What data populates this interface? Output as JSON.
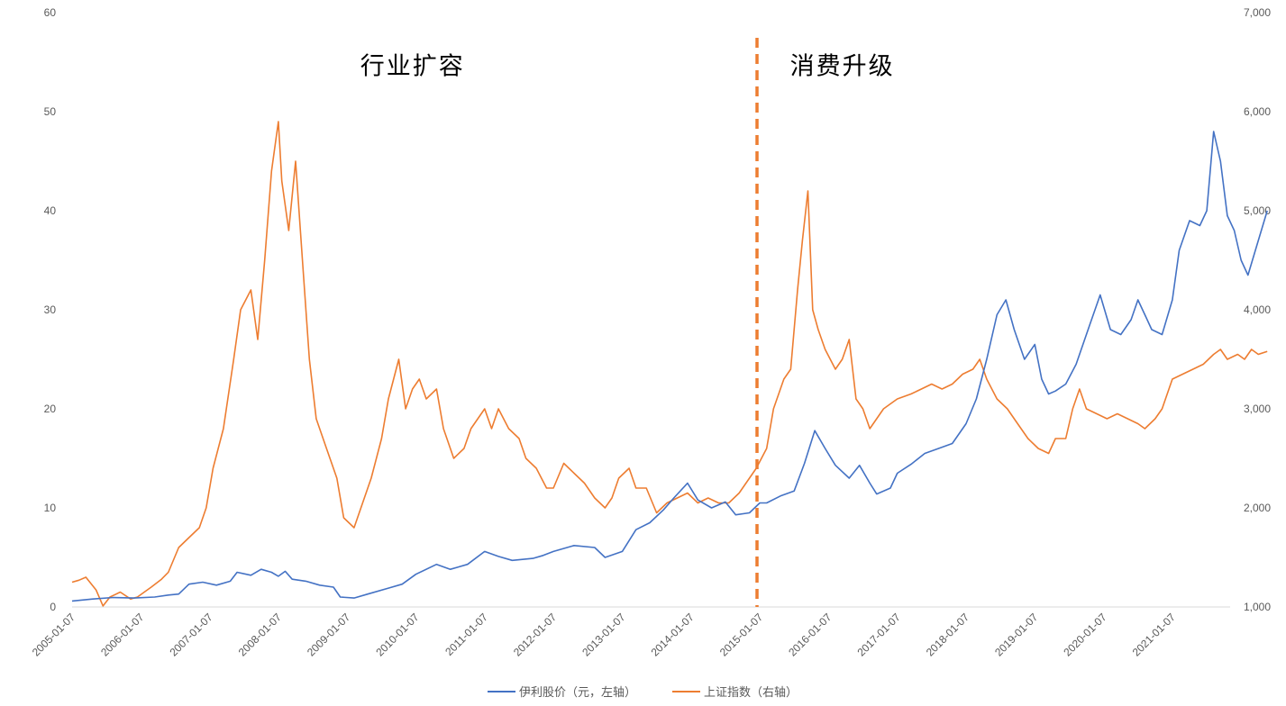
{
  "chart_data": {
    "type": "line",
    "y_left": {
      "ticks": [
        0,
        10,
        20,
        30,
        40,
        50,
        60
      ],
      "tick_labels": [
        "0",
        "10",
        "20",
        "30",
        "40",
        "50",
        "60"
      ],
      "ylim": [
        0,
        60
      ]
    },
    "y_right": {
      "ticks": [
        1000,
        2000,
        3000,
        4000,
        5000,
        6000,
        7000
      ],
      "tick_labels": [
        "1,000",
        "2,000",
        "3,000",
        "4,000",
        "5,000",
        "6,000",
        "7,000"
      ],
      "ylim": [
        1000,
        7000
      ]
    },
    "x_tick_labels": [
      "2005-01-07",
      "2006-01-07",
      "2007-01-07",
      "2008-01-07",
      "2009-01-07",
      "2010-01-07",
      "2011-01-07",
      "2012-01-07",
      "2013-01-07",
      "2014-01-07",
      "2015-01-07",
      "2016-01-07",
      "2017-01-07",
      "2018-01-07",
      "2019-01-07",
      "2020-01-07",
      "2021-01-07"
    ],
    "x_range": [
      2005.0,
      2021.84
    ],
    "grid": false,
    "legend_position": "bottom",
    "divider_x": 2014.96,
    "annotations": [
      {
        "text": "行业扩容",
        "x": 2009.95,
        "y_right": 6470
      },
      {
        "text": "消费升级",
        "x": 2016.2,
        "y_right": 6470
      }
    ],
    "series": [
      {
        "name": "伊利股价（元，左轴）",
        "axis": "left",
        "color": "#4472c4",
        "points": [
          [
            2005.0,
            0.6
          ],
          [
            2005.3,
            0.8
          ],
          [
            2005.6,
            0.95
          ],
          [
            2005.9,
            0.9
          ],
          [
            2006.2,
            1.0
          ],
          [
            2006.4,
            1.2
          ],
          [
            2006.55,
            1.3
          ],
          [
            2006.7,
            2.3
          ],
          [
            2006.9,
            2.5
          ],
          [
            2007.1,
            2.2
          ],
          [
            2007.3,
            2.6
          ],
          [
            2007.4,
            3.5
          ],
          [
            2007.6,
            3.2
          ],
          [
            2007.75,
            3.8
          ],
          [
            2007.9,
            3.5
          ],
          [
            2008.0,
            3.1
          ],
          [
            2008.1,
            3.6
          ],
          [
            2008.2,
            2.8
          ],
          [
            2008.4,
            2.6
          ],
          [
            2008.6,
            2.2
          ],
          [
            2008.8,
            2.0
          ],
          [
            2008.9,
            1.0
          ],
          [
            2009.1,
            0.9
          ],
          [
            2009.3,
            1.3
          ],
          [
            2009.6,
            1.9
          ],
          [
            2009.8,
            2.3
          ],
          [
            2010.0,
            3.3
          ],
          [
            2010.3,
            4.3
          ],
          [
            2010.5,
            3.8
          ],
          [
            2010.75,
            4.3
          ],
          [
            2011.0,
            5.6
          ],
          [
            2011.2,
            5.1
          ],
          [
            2011.4,
            4.7
          ],
          [
            2011.7,
            4.9
          ],
          [
            2011.85,
            5.2
          ],
          [
            2012.0,
            5.6
          ],
          [
            2012.3,
            6.2
          ],
          [
            2012.6,
            6.0
          ],
          [
            2012.75,
            5.0
          ],
          [
            2013.0,
            5.6
          ],
          [
            2013.2,
            7.8
          ],
          [
            2013.4,
            8.5
          ],
          [
            2013.6,
            9.8
          ],
          [
            2013.75,
            11.0
          ],
          [
            2013.95,
            12.5
          ],
          [
            2014.1,
            10.8
          ],
          [
            2014.3,
            10.0
          ],
          [
            2014.5,
            10.6
          ],
          [
            2014.65,
            9.3
          ],
          [
            2014.85,
            9.5
          ],
          [
            2015.0,
            10.5
          ],
          [
            2015.1,
            10.5
          ],
          [
            2015.3,
            11.2
          ],
          [
            2015.5,
            11.7
          ],
          [
            2015.65,
            14.5
          ],
          [
            2015.8,
            17.8
          ],
          [
            2015.95,
            16.0
          ],
          [
            2016.1,
            14.3
          ],
          [
            2016.3,
            13.0
          ],
          [
            2016.45,
            14.3
          ],
          [
            2016.6,
            12.5
          ],
          [
            2016.7,
            11.4
          ],
          [
            2016.9,
            12.0
          ],
          [
            2017.0,
            13.5
          ],
          [
            2017.2,
            14.4
          ],
          [
            2017.4,
            15.5
          ],
          [
            2017.6,
            16.0
          ],
          [
            2017.8,
            16.5
          ],
          [
            2018.0,
            18.5
          ],
          [
            2018.15,
            21.0
          ],
          [
            2018.3,
            25.0
          ],
          [
            2018.45,
            29.5
          ],
          [
            2018.58,
            31.0
          ],
          [
            2018.7,
            28.0
          ],
          [
            2018.85,
            25.0
          ],
          [
            2019.0,
            26.5
          ],
          [
            2019.1,
            23.0
          ],
          [
            2019.2,
            21.5
          ],
          [
            2019.3,
            21.8
          ],
          [
            2019.45,
            22.5
          ],
          [
            2019.6,
            24.5
          ],
          [
            2019.8,
            28.5
          ],
          [
            2019.95,
            31.5
          ],
          [
            2020.1,
            28.0
          ],
          [
            2020.25,
            27.5
          ],
          [
            2020.4,
            29.0
          ],
          [
            2020.5,
            31.0
          ],
          [
            2020.6,
            29.5
          ],
          [
            2020.7,
            28.0
          ],
          [
            2020.85,
            27.5
          ],
          [
            2021.0,
            31.0
          ],
          [
            2021.1,
            36.0
          ],
          [
            2021.25,
            39.0
          ],
          [
            2021.4,
            38.5
          ],
          [
            2021.5,
            40.0
          ],
          [
            2021.6,
            48.0
          ],
          [
            2021.7,
            45.0
          ],
          [
            2021.8,
            39.5
          ],
          [
            2021.9,
            38.0
          ],
          [
            2022.0,
            35.0
          ],
          [
            2022.1,
            33.5
          ],
          [
            2022.25,
            37.0
          ],
          [
            2022.38,
            40.0
          ]
        ]
      },
      {
        "name": "上证指数（右轴）",
        "axis": "right",
        "color": "#ed7d31",
        "points": [
          [
            2005.0,
            1250
          ],
          [
            2005.1,
            1270
          ],
          [
            2005.2,
            1300
          ],
          [
            2005.35,
            1170
          ],
          [
            2005.45,
            1010
          ],
          [
            2005.55,
            1100
          ],
          [
            2005.7,
            1150
          ],
          [
            2005.85,
            1080
          ],
          [
            2005.95,
            1100
          ],
          [
            2006.05,
            1150
          ],
          [
            2006.15,
            1200
          ],
          [
            2006.3,
            1280
          ],
          [
            2006.4,
            1350
          ],
          [
            2006.55,
            1600
          ],
          [
            2006.7,
            1700
          ],
          [
            2006.85,
            1800
          ],
          [
            2006.95,
            2000
          ],
          [
            2007.05,
            2400
          ],
          [
            2007.2,
            2800
          ],
          [
            2007.35,
            3500
          ],
          [
            2007.45,
            4000
          ],
          [
            2007.6,
            4200
          ],
          [
            2007.7,
            3700
          ],
          [
            2007.8,
            4500
          ],
          [
            2007.9,
            5400
          ],
          [
            2008.0,
            5900
          ],
          [
            2008.05,
            5300
          ],
          [
            2008.15,
            4800
          ],
          [
            2008.25,
            5500
          ],
          [
            2008.35,
            4500
          ],
          [
            2008.45,
            3500
          ],
          [
            2008.55,
            2900
          ],
          [
            2008.7,
            2600
          ],
          [
            2008.85,
            2300
          ],
          [
            2008.95,
            1900
          ],
          [
            2009.1,
            1800
          ],
          [
            2009.2,
            2000
          ],
          [
            2009.35,
            2300
          ],
          [
            2009.5,
            2700
          ],
          [
            2009.6,
            3100
          ],
          [
            2009.75,
            3500
          ],
          [
            2009.85,
            3000
          ],
          [
            2009.95,
            3200
          ],
          [
            2010.05,
            3300
          ],
          [
            2010.15,
            3100
          ],
          [
            2010.3,
            3200
          ],
          [
            2010.4,
            2800
          ],
          [
            2010.55,
            2500
          ],
          [
            2010.7,
            2600
          ],
          [
            2010.8,
            2800
          ],
          [
            2010.9,
            2900
          ],
          [
            2011.0,
            3000
          ],
          [
            2011.1,
            2800
          ],
          [
            2011.2,
            3000
          ],
          [
            2011.35,
            2800
          ],
          [
            2011.5,
            2700
          ],
          [
            2011.6,
            2500
          ],
          [
            2011.75,
            2400
          ],
          [
            2011.9,
            2200
          ],
          [
            2012.0,
            2200
          ],
          [
            2012.15,
            2450
          ],
          [
            2012.3,
            2350
          ],
          [
            2012.45,
            2250
          ],
          [
            2012.6,
            2100
          ],
          [
            2012.75,
            2000
          ],
          [
            2012.85,
            2100
          ],
          [
            2012.95,
            2300
          ],
          [
            2013.1,
            2400
          ],
          [
            2013.2,
            2200
          ],
          [
            2013.35,
            2200
          ],
          [
            2013.5,
            1950
          ],
          [
            2013.65,
            2050
          ],
          [
            2013.8,
            2100
          ],
          [
            2013.95,
            2150
          ],
          [
            2014.1,
            2050
          ],
          [
            2014.25,
            2100
          ],
          [
            2014.4,
            2050
          ],
          [
            2014.55,
            2050
          ],
          [
            2014.7,
            2150
          ],
          [
            2014.85,
            2300
          ],
          [
            2014.95,
            2400
          ],
          [
            2015.1,
            2600
          ],
          [
            2015.2,
            3000
          ],
          [
            2015.35,
            3300
          ],
          [
            2015.45,
            3400
          ],
          [
            2015.55,
            4200
          ],
          [
            2015.62,
            4700
          ],
          [
            2015.7,
            5200
          ],
          [
            2015.77,
            4000
          ],
          [
            2015.85,
            3800
          ],
          [
            2015.95,
            3600
          ],
          [
            2016.1,
            3400
          ],
          [
            2016.2,
            3500
          ],
          [
            2016.3,
            3700
          ],
          [
            2016.4,
            3100
          ],
          [
            2016.5,
            3000
          ],
          [
            2016.6,
            2800
          ],
          [
            2016.7,
            2900
          ],
          [
            2016.8,
            3000
          ],
          [
            2016.9,
            3050
          ],
          [
            2017.0,
            3100
          ],
          [
            2017.2,
            3150
          ],
          [
            2017.35,
            3200
          ],
          [
            2017.5,
            3250
          ],
          [
            2017.65,
            3200
          ],
          [
            2017.8,
            3250
          ],
          [
            2017.95,
            3350
          ],
          [
            2018.1,
            3400
          ],
          [
            2018.2,
            3500
          ],
          [
            2018.3,
            3300
          ],
          [
            2018.45,
            3100
          ],
          [
            2018.6,
            3000
          ],
          [
            2018.75,
            2850
          ],
          [
            2018.9,
            2700
          ],
          [
            2019.05,
            2600
          ],
          [
            2019.2,
            2550
          ],
          [
            2019.3,
            2700
          ],
          [
            2019.45,
            2700
          ],
          [
            2019.55,
            3000
          ],
          [
            2019.65,
            3200
          ],
          [
            2019.75,
            3000
          ],
          [
            2019.9,
            2950
          ],
          [
            2020.05,
            2900
          ],
          [
            2020.2,
            2950
          ],
          [
            2020.35,
            2900
          ],
          [
            2020.5,
            2850
          ],
          [
            2020.6,
            2800
          ],
          [
            2020.75,
            2900
          ],
          [
            2020.85,
            3000
          ],
          [
            2021.0,
            3300
          ],
          [
            2021.15,
            3350
          ],
          [
            2021.3,
            3400
          ],
          [
            2021.45,
            3450
          ],
          [
            2021.6,
            3550
          ],
          [
            2021.7,
            3600
          ],
          [
            2021.8,
            3500
          ],
          [
            2021.95,
            3550
          ],
          [
            2022.05,
            3500
          ],
          [
            2022.15,
            3600
          ],
          [
            2022.25,
            3550
          ],
          [
            2022.38,
            3580
          ]
        ]
      }
    ]
  }
}
